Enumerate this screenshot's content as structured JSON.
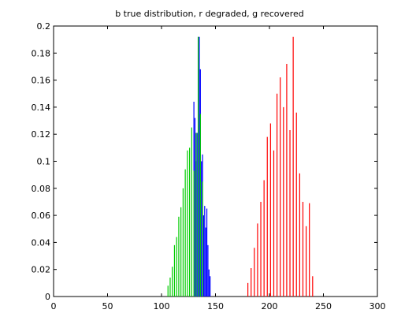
{
  "chart_data": {
    "type": "bar",
    "title": "b true distribution, r degraded, g recovered",
    "xlabel": "",
    "ylabel": "",
    "xlim": [
      0,
      300
    ],
    "ylim": [
      0,
      0.2
    ],
    "xticks": [
      0,
      50,
      100,
      150,
      200,
      250,
      300
    ],
    "yticks": [
      0,
      0.02,
      0.04,
      0.06,
      0.08,
      0.1,
      0.12,
      0.14,
      0.16,
      0.18,
      0.2
    ],
    "ytick_labels": [
      "0",
      "0.02",
      "0.04",
      "0.06",
      "0.08",
      "0.1",
      "0.12",
      "0.14",
      "0.16",
      "0.18",
      "0.2"
    ],
    "grid": false,
    "series": [
      {
        "color": "#0000ff",
        "x": [
          130,
          131,
          132,
          133,
          134,
          135,
          136,
          137,
          138,
          139,
          140,
          141,
          142,
          143,
          144,
          145
        ],
        "values": [
          0.144,
          0.132,
          0.1,
          0.121,
          0.192,
          0.192,
          0.168,
          0.1,
          0.105,
          0.06,
          0.067,
          0.051,
          0.065,
          0.038,
          0.02,
          0.015
        ]
      },
      {
        "color": "#ff0000",
        "x": [
          180,
          183,
          186,
          189,
          192,
          195,
          198,
          201,
          204,
          207,
          210,
          213,
          216,
          219,
          222,
          225,
          228,
          231,
          234,
          237,
          240
        ],
        "values": [
          0.01,
          0.021,
          0.036,
          0.054,
          0.07,
          0.086,
          0.118,
          0.128,
          0.108,
          0.15,
          0.162,
          0.14,
          0.172,
          0.123,
          0.192,
          0.136,
          0.091,
          0.07,
          0.052,
          0.069,
          0.015
        ]
      },
      {
        "color": "#00cc00",
        "x": [
          106,
          108,
          110,
          112,
          114,
          116,
          118,
          120,
          122,
          124,
          126,
          128,
          130,
          132,
          134,
          136,
          138
        ],
        "values": [
          0.008,
          0.014,
          0.022,
          0.038,
          0.044,
          0.059,
          0.066,
          0.08,
          0.094,
          0.108,
          0.11,
          0.125,
          0.093,
          0.121,
          0.192,
          0.135,
          0.085
        ]
      }
    ]
  }
}
